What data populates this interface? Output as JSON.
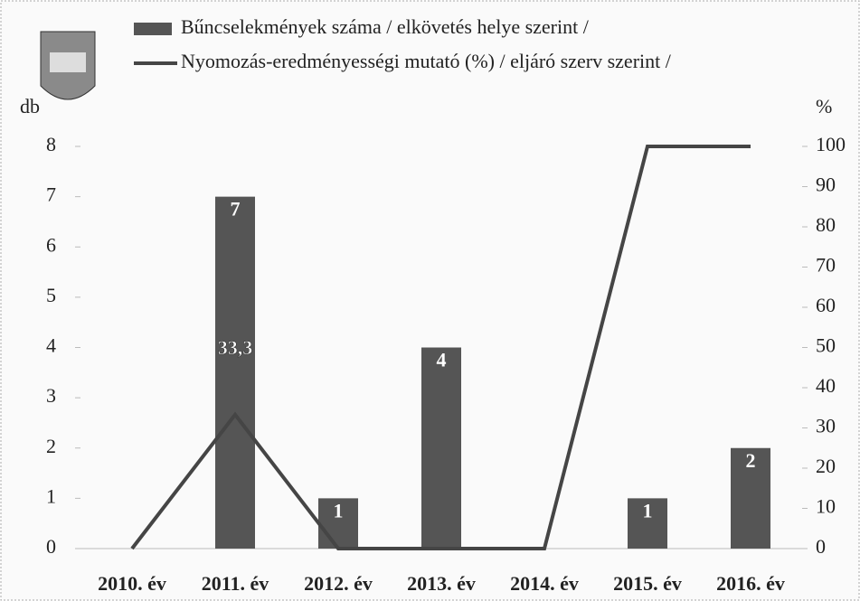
{
  "chart_data": {
    "type": "bar-line",
    "categories": [
      "2010. év",
      "2011. év",
      "2012. év",
      "2013. év",
      "2014. év",
      "2015. év",
      "2016. év"
    ],
    "series": [
      {
        "name": "Bűncselekmények száma / elkövetés helye szerint /",
        "type": "bar",
        "color": "#555555",
        "values": [
          0,
          7,
          1,
          4,
          0,
          1,
          2
        ]
      },
      {
        "name": "Nyomozás-eredményességi mutató (%) / eljáró szerv szerint /",
        "type": "line",
        "axis": "y2",
        "color": "#454545",
        "values": [
          0,
          33.3,
          0,
          0,
          0,
          100,
          100
        ],
        "value_labels": [
          null,
          "33,3",
          null,
          null,
          null,
          null,
          null
        ]
      }
    ],
    "ylabel": "db",
    "y2label": "%",
    "ylim": [
      0,
      8
    ],
    "yticks": [
      0,
      1,
      2,
      3,
      4,
      5,
      6,
      7,
      8
    ],
    "y2lim": [
      0,
      100
    ],
    "y2ticks": [
      0,
      10,
      20,
      30,
      40,
      50,
      60,
      70,
      80,
      90,
      100
    ]
  }
}
